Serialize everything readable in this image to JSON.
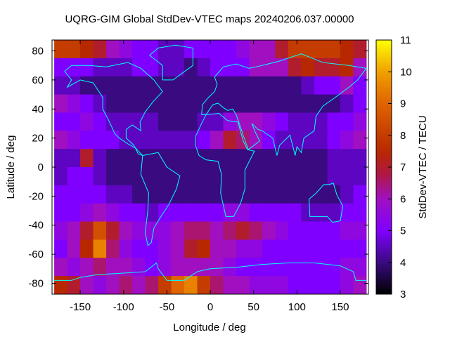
{
  "chart_data": {
    "type": "heatmap",
    "title": "UQRG-GIM Global StdDev-VTEC maps 20240206.037.00000",
    "xlabel": "Longitude / deg",
    "ylabel": "Latitude / deg",
    "colorbar_label": "StdDev-VTEC / TECU",
    "xlim": [
      -182.5,
      182.5
    ],
    "ylim": [
      -87.5,
      87.5
    ],
    "xticks": [
      -150,
      -100,
      -50,
      0,
      50,
      100,
      150
    ],
    "yticks": [
      80,
      60,
      40,
      20,
      0,
      -20,
      -40,
      -60,
      -80
    ],
    "cbrange": [
      3,
      11
    ],
    "cbticks": [
      3,
      4,
      5,
      6,
      7,
      8,
      9,
      10,
      11
    ],
    "palette": [
      {
        "v": 3,
        "color": "#000000"
      },
      {
        "v": 4,
        "color": "#3a0a80"
      },
      {
        "v": 5,
        "color": "#8000ff"
      },
      {
        "v": 6,
        "color": "#a010c0"
      },
      {
        "v": 6.8,
        "color": "#b01840"
      },
      {
        "v": 7.5,
        "color": "#b82800"
      },
      {
        "v": 9,
        "color": "#e06400"
      },
      {
        "v": 10,
        "color": "#f0a000"
      },
      {
        "v": 11,
        "color": "#ffff00"
      }
    ],
    "coastline_color": "#00ffff",
    "lon_centers": [
      -172.5,
      -157.5,
      -142.5,
      -127.5,
      -112.5,
      -97.5,
      -82.5,
      -67.5,
      -52.5,
      -37.5,
      -22.5,
      -7.5,
      7.5,
      22.5,
      37.5,
      52.5,
      67.5,
      82.5,
      97.5,
      112.5,
      127.5,
      142.5,
      157.5,
      172.5
    ],
    "lat_centers": [
      81.25,
      68.75,
      56.25,
      43.75,
      31.25,
      18.75,
      6.25,
      -6.25,
      -18.75,
      -31.25,
      -43.75,
      -56.25,
      -68.75,
      -81.25
    ],
    "values": [
      [
        8,
        8,
        7.5,
        7,
        6,
        5.5,
        5,
        5,
        4.5,
        4.5,
        5,
        5,
        5,
        5,
        5.5,
        6,
        6,
        7,
        8,
        8,
        8,
        8,
        7.5,
        7
      ],
      [
        5,
        5,
        5,
        4.5,
        4.5,
        4.5,
        5,
        5,
        4.5,
        4.5,
        4,
        4.5,
        5,
        5,
        5,
        6,
        6,
        6,
        7,
        7.5,
        7,
        7,
        7.5,
        6
      ],
      [
        4.5,
        4.5,
        4,
        4,
        4,
        4,
        4,
        4,
        4,
        4,
        4,
        4,
        4,
        4,
        4,
        4,
        4,
        4,
        4,
        4.5,
        5,
        5,
        6,
        5
      ],
      [
        6,
        5.5,
        5,
        4.5,
        4,
        4,
        4,
        4,
        4,
        4,
        4,
        4,
        4,
        4,
        4,
        4,
        4,
        4,
        4,
        4,
        4,
        4,
        4.5,
        5
      ],
      [
        5,
        5,
        5.5,
        5,
        4.5,
        4.5,
        4.5,
        4.5,
        4,
        4,
        4,
        4.5,
        4.5,
        5.5,
        6,
        6,
        5.5,
        5,
        4.5,
        4.5,
        4.5,
        5,
        5,
        5.5
      ],
      [
        6,
        5.5,
        5,
        5,
        5,
        4.5,
        4.5,
        4.5,
        4.5,
        4.5,
        4.5,
        5,
        6,
        7,
        6.5,
        6,
        5,
        4.5,
        4.5,
        4.5,
        4.5,
        5,
        5.5,
        6
      ],
      [
        4.5,
        4.5,
        7,
        4.5,
        4,
        4,
        4,
        4,
        4,
        4,
        4,
        4,
        4,
        4,
        4,
        4,
        4,
        4,
        4,
        4,
        4,
        4.5,
        4.5,
        4.5
      ],
      [
        4.5,
        5,
        5,
        4.5,
        4,
        4,
        4,
        4,
        4,
        4,
        4,
        4,
        4,
        4,
        4,
        4,
        4,
        4,
        4,
        4,
        4,
        4.5,
        4.5,
        4.5
      ],
      [
        5,
        5,
        5,
        5,
        4.5,
        4.5,
        4,
        4,
        4,
        4,
        4,
        4,
        4,
        4,
        4,
        4,
        4,
        4,
        4,
        4,
        4,
        4,
        4.5,
        5
      ],
      [
        5,
        5,
        5.5,
        6,
        5.5,
        5,
        5,
        4.5,
        5,
        5,
        5,
        5,
        5,
        5.5,
        5.5,
        5,
        5,
        5,
        5,
        4.5,
        4.5,
        4.5,
        5,
        5
      ],
      [
        5.5,
        6,
        7,
        8.5,
        7,
        6,
        5.5,
        5.5,
        5.5,
        6,
        6.5,
        6.5,
        6,
        6.5,
        7,
        6.5,
        6,
        5.5,
        5,
        5,
        5,
        5,
        5.5,
        5.5
      ],
      [
        5,
        6,
        7.5,
        9.5,
        6.5,
        5.5,
        5,
        5,
        5.5,
        6,
        7,
        7.5,
        6,
        6,
        5.5,
        5.5,
        5,
        5,
        5,
        5,
        5,
        5,
        5,
        5
      ],
      [
        6,
        5.5,
        6,
        6.5,
        6,
        6,
        5.5,
        5,
        5.5,
        6,
        6,
        6,
        6,
        5.5,
        5,
        5,
        5,
        5,
        5,
        5,
        5,
        5,
        5.5,
        5.5
      ],
      [
        7.5,
        7,
        6,
        5.5,
        6,
        6.5,
        6,
        6.5,
        8,
        9,
        9.5,
        8,
        6.5,
        6,
        6,
        5.5,
        5.5,
        5.5,
        5,
        5,
        5,
        5,
        5.5,
        6
      ]
    ]
  }
}
